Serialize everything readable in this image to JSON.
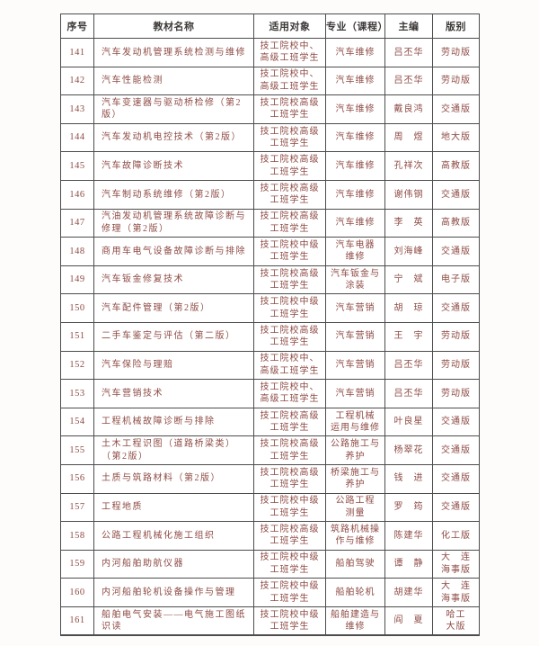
{
  "colors": {
    "body_text": "#8e4b44",
    "header_text": "#3e3a39",
    "border": "#4c4c4c",
    "page_background": "#fdfcfb"
  },
  "table": {
    "column_keys": [
      "no",
      "name",
      "audience",
      "major",
      "editor",
      "publisher"
    ],
    "headers": [
      "序号",
      "教材名称",
      "适用对象",
      "专业（课程）",
      "主编",
      "版别"
    ],
    "rows": [
      {
        "no": "141",
        "name": "汽车发动机管理系统检测与维修",
        "audience": "技工院校中、\n高级工班学生",
        "major": "汽车维修",
        "editor": "吕丕华",
        "publisher": "劳动版"
      },
      {
        "no": "142",
        "name": "汽车性能检测",
        "audience": "技工院校中、\n高级工班学生",
        "major": "汽车维修",
        "editor": "吕丕华",
        "publisher": "劳动版"
      },
      {
        "no": "143",
        "name": "汽车变速器与驱动桥检修（第2版）",
        "audience": "技工院校高级\n工班学生",
        "major": "汽车维修",
        "editor": "戴良鸿",
        "publisher": "交通版"
      },
      {
        "no": "144",
        "name": "汽车发动机电控技术（第2版）",
        "audience": "技工院校高级\n工班学生",
        "major": "汽车维修",
        "editor": "周　煜",
        "publisher": "地大版"
      },
      {
        "no": "145",
        "name": "汽车故障诊断技术",
        "audience": "技工院校高级\n工班学生",
        "major": "汽车维修",
        "editor": "孔祥次",
        "publisher": "高教版"
      },
      {
        "no": "146",
        "name": "汽车制动系统维修（第2版）",
        "audience": "技工院校高级\n工班学生",
        "major": "汽车维修",
        "editor": "谢伟钢",
        "publisher": "交通版"
      },
      {
        "no": "147",
        "name": "汽油发动机管理系统故障诊断与\n修理（第2版）",
        "audience": "技工院校高级\n工班学生",
        "major": "汽车维修",
        "editor": "李　英",
        "publisher": "高教版"
      },
      {
        "no": "148",
        "name": "商用车电气设备故障诊断与排除",
        "audience": "技工院校中级\n工班学生",
        "major": "汽车电器\n维修",
        "editor": "刘海峰",
        "publisher": "交通版"
      },
      {
        "no": "149",
        "name": "汽车钣金修复技术",
        "audience": "技工院校高级\n工班学生",
        "major": "汽车钣金与\n涂装",
        "editor": "宁　斌",
        "publisher": "电子版"
      },
      {
        "no": "150",
        "name": "汽车配件管理（第2版）",
        "audience": "技工院校中级\n工班学生",
        "major": "汽车营销",
        "editor": "胡　琼",
        "publisher": "交通版"
      },
      {
        "no": "151",
        "name": "二手车鉴定与评估（第二版）",
        "audience": "技工院校高级\n工班学生",
        "major": "汽车营销",
        "editor": "王　宇",
        "publisher": "劳动版"
      },
      {
        "no": "152",
        "name": "汽车保险与理赔",
        "audience": "技工院校中、\n高级工班学生",
        "major": "汽车营销",
        "editor": "吕丕华",
        "publisher": "劳动版"
      },
      {
        "no": "153",
        "name": "汽车营销技术",
        "audience": "技工院校中、\n高级工班学生",
        "major": "汽车营销",
        "editor": "吕丕华",
        "publisher": "劳动版"
      },
      {
        "no": "154",
        "name": "工程机械故障诊断与排除",
        "audience": "技工院校高级\n工班学生",
        "major": "工程机械\n运用与维修",
        "editor": "叶良星",
        "publisher": "交通版"
      },
      {
        "no": "155",
        "name": "土木工程识图（道路桥梁类）\n（第2版）",
        "audience": "技工院校高级\n工班学生",
        "major": "公路施工与\n养护",
        "editor": "杨翠花",
        "publisher": "交通版"
      },
      {
        "no": "156",
        "name": "土质与筑路材料（第2版）",
        "audience": "技工院校高级\n工班学生",
        "major": "桥梁施工与\n养护",
        "editor": "钱　进",
        "publisher": "交通版"
      },
      {
        "no": "157",
        "name": "工程地质",
        "audience": "技工院校中级\n工班学生",
        "major": "公路工程\n测量",
        "editor": "罗　筠",
        "publisher": "交通版"
      },
      {
        "no": "158",
        "name": "公路工程机械化施工组织",
        "audience": "技工院校高级\n工班学生",
        "major": "筑路机械操\n作与维修",
        "editor": "陈建华",
        "publisher": "化工版"
      },
      {
        "no": "159",
        "name": "内河船舶助航仪器",
        "audience": "技工院校中级\n工班学生",
        "major": "船舶驾驶",
        "editor": "谭　静",
        "publisher": "大　连\n海事版"
      },
      {
        "no": "160",
        "name": "内河船舶轮机设备操作与管理",
        "audience": "技工院校中级\n工班学生",
        "major": "船舶轮机",
        "editor": "胡建华",
        "publisher": "大　连\n海事版"
      },
      {
        "no": "161",
        "name": "船舶电气安装——电气施工图纸\n识读",
        "audience": "技工院校中级\n工班学生",
        "major": "船舶建造与\n维修",
        "editor": "阎　夏",
        "publisher": "哈工\n大版"
      }
    ]
  }
}
